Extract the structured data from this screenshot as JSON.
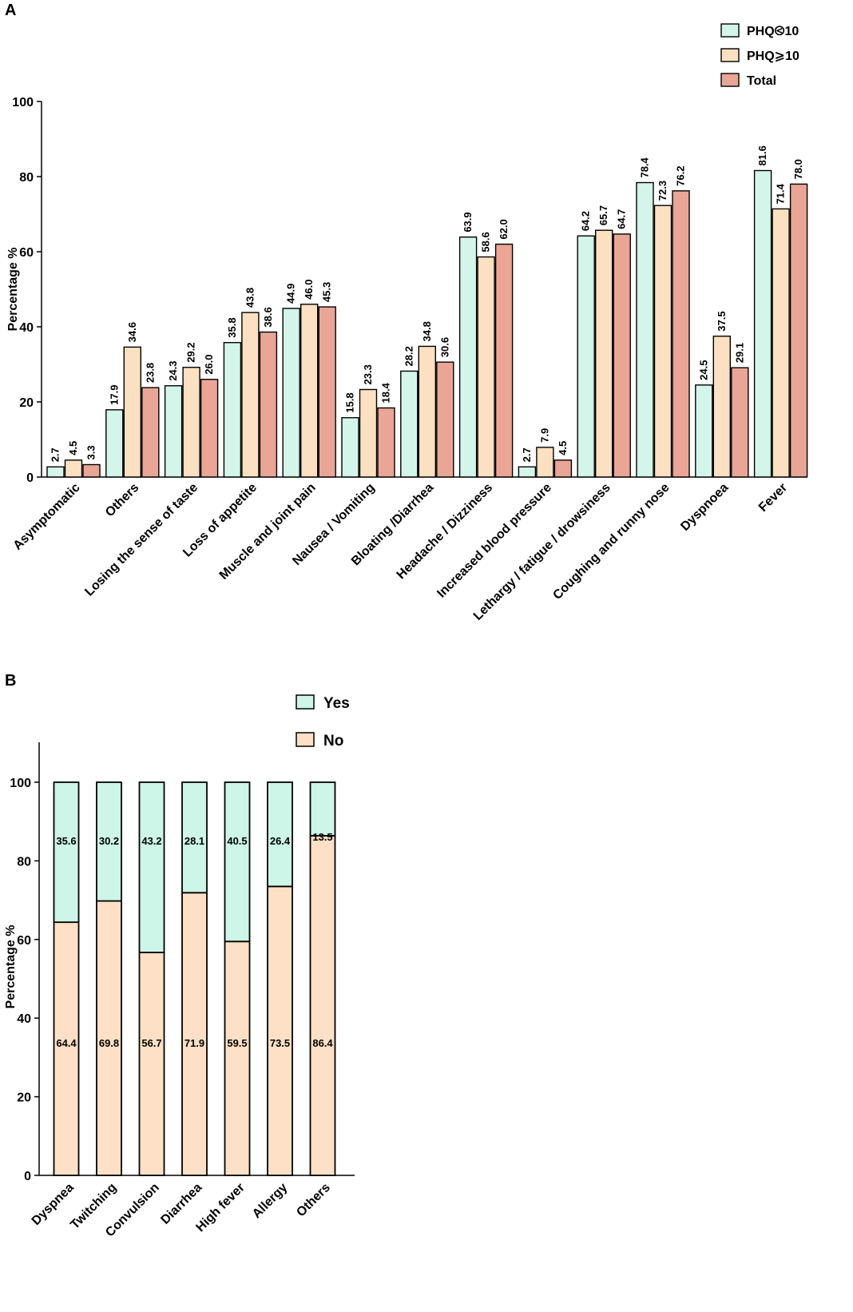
{
  "chart_data": [
    {
      "panel": "A",
      "type": "bar",
      "title": "",
      "xlabel": "",
      "ylabel": "Percentage %",
      "ylim": [
        0,
        100
      ],
      "yticks": [
        0,
        20,
        40,
        60,
        80,
        100
      ],
      "legend_position": "top-right",
      "categories": [
        "Asymptomatic",
        "Others",
        "Losing the sense of taste",
        "Loss of appetite",
        "Muscle and joint pain",
        "Nausea / Vomiting",
        "Bloating /Diarrhea",
        "Headache / Dizziness",
        "Increased blood pressure",
        "Lethargy / fatigue / drowsiness",
        "Coughing and runny nose",
        "Dyspnoea",
        "Fever"
      ],
      "series": [
        {
          "name": "PHQ<10",
          "label": "PHQ⧀10",
          "color": "#d4f5e9",
          "values": [
            2.7,
            17.9,
            24.3,
            35.8,
            44.9,
            15.8,
            28.2,
            63.9,
            2.7,
            64.2,
            78.4,
            24.5,
            81.6
          ]
        },
        {
          "name": "PHQ>=10",
          "label": "PHQ⩾10",
          "color": "#fbe0c2",
          "values": [
            4.5,
            34.6,
            29.2,
            43.8,
            46.0,
            23.3,
            34.8,
            58.6,
            7.9,
            65.7,
            72.3,
            37.5,
            71.4
          ]
        },
        {
          "name": "Total",
          "label": "Total",
          "color": "#e9a595",
          "values": [
            3.3,
            23.8,
            26.0,
            38.6,
            45.3,
            18.4,
            30.6,
            62.0,
            4.5,
            64.7,
            76.2,
            29.1,
            78.0
          ]
        }
      ]
    },
    {
      "panel": "B",
      "type": "bar",
      "stacked": true,
      "title": "",
      "xlabel": "",
      "ylabel": "Percentage %",
      "ylim": [
        0,
        110
      ],
      "yticks": [
        0,
        20,
        40,
        60,
        80,
        100
      ],
      "legend_position": "top",
      "categories": [
        "Dyspnea",
        "Twitching",
        "Convulsion",
        "Diarrhea",
        "High fever",
        "Allergy",
        "Others"
      ],
      "series": [
        {
          "name": "No",
          "color": "#fde0c5",
          "values": [
            64.4,
            69.8,
            56.7,
            71.9,
            59.5,
            73.5,
            86.4
          ]
        },
        {
          "name": "Yes",
          "color": "#cdf5e8",
          "values": [
            35.6,
            30.2,
            43.2,
            28.1,
            40.5,
            26.4,
            13.5
          ]
        }
      ],
      "legend_order": [
        "Yes",
        "No"
      ]
    }
  ]
}
